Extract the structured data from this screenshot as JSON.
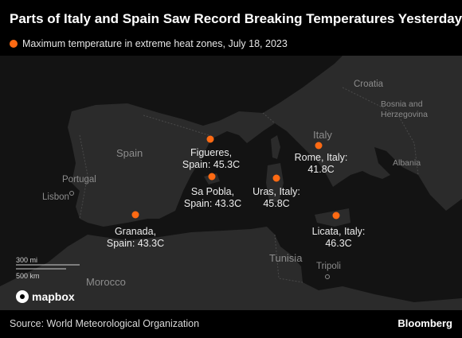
{
  "title": "Parts of Italy and Spain Saw Record Breaking Temperatures Yesterday",
  "legend": {
    "label": "Maximum temperature in extreme heat zones, July 18, 2023",
    "color": "#ff6a13"
  },
  "colors": {
    "land": "#2b2b2b",
    "sea": "#131313",
    "border": "#4a4a4a",
    "marker": "#ff6a13"
  },
  "places": {
    "spain": "Spain",
    "portugal": "Portugal",
    "lisbon": "Lisbon",
    "morocco": "Morocco",
    "tunisia": "Tunisia",
    "tripoli": "Tripoli",
    "italy": "Italy",
    "croatia": "Croatia",
    "bosnia": "Bosnia and Herzegovina",
    "albania": "Albania"
  },
  "cities": [
    {
      "name": "Figueres,",
      "line2": "Spain: 45.3C",
      "lat": 42.27,
      "lon": 2.96
    },
    {
      "name": "Sa Pobla,",
      "line2": "Spain: 43.3C",
      "lat": 39.77,
      "lon": 3.02
    },
    {
      "name": "Granada,",
      "line2": "Spain: 43.3C",
      "lat": 37.18,
      "lon": -3.6
    },
    {
      "name": "Rome, Italy:",
      "line2": "41.8C",
      "lat": 41.9,
      "lon": 12.5
    },
    {
      "name": "Uras, Italy:",
      "line2": "45.8C",
      "lat": 39.7,
      "lon": 8.7
    },
    {
      "name": "Licata, Italy:",
      "line2": "46.3C",
      "lat": 37.1,
      "lon": 13.94
    }
  ],
  "scale": {
    "mi": "300 mi",
    "km": "500 km"
  },
  "attribution": "mapbox",
  "source": "Source: World Meteorological Organization",
  "brand": "Bloomberg"
}
